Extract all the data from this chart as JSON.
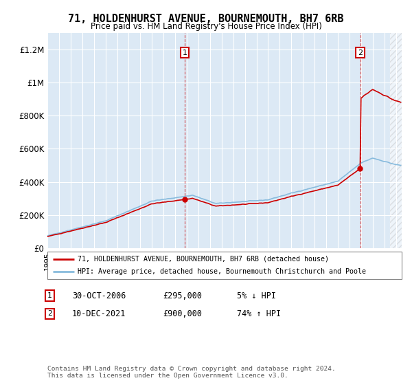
{
  "title": "71, HOLDENHURST AVENUE, BOURNEMOUTH, BH7 6RB",
  "subtitle": "Price paid vs. HM Land Registry's House Price Index (HPI)",
  "ylim": [
    0,
    1300000
  ],
  "yticks": [
    0,
    200000,
    400000,
    600000,
    800000,
    1000000,
    1200000
  ],
  "ytick_labels": [
    "£0",
    "£200K",
    "£400K",
    "£600K",
    "£800K",
    "£1M",
    "£1.2M"
  ],
  "background_color": "#dce9f5",
  "plot_bg": "#dce9f5",
  "grid_color": "#ffffff",
  "hpi_color": "#88bbdd",
  "price_color": "#cc0000",
  "sale1_x": 2006.83,
  "sale1_y": 295000,
  "sale2_x": 2021.94,
  "sale2_y": 900000,
  "legend_label1": "71, HOLDENHURST AVENUE, BOURNEMOUTH, BH7 6RB (detached house)",
  "legend_label2": "HPI: Average price, detached house, Bournemouth Christchurch and Poole",
  "annotation1_label": "1",
  "annotation1_date": "30-OCT-2006",
  "annotation1_price": "£295,000",
  "annotation1_hpi": "5% ↓ HPI",
  "annotation2_label": "2",
  "annotation2_date": "10-DEC-2021",
  "annotation2_price": "£900,000",
  "annotation2_hpi": "74% ↑ HPI",
  "footnote": "Contains HM Land Registry data © Crown copyright and database right 2024.\nThis data is licensed under the Open Government Licence v3.0.",
  "xmin": 1995,
  "xmax": 2025.5
}
